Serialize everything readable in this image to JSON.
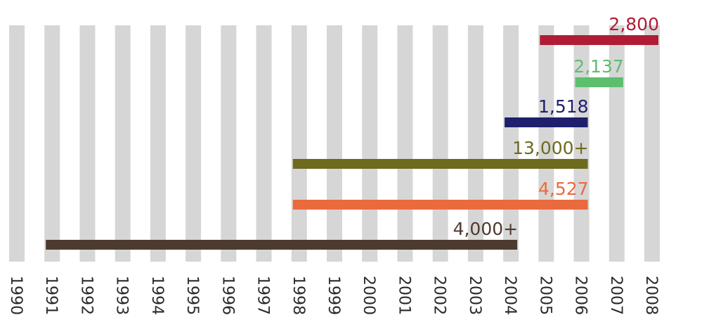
{
  "chart_data": {
    "type": "bar",
    "orientation": "horizontal-timeline",
    "title": "",
    "xlabel": "",
    "ylabel": "",
    "x_categories": [
      "1990",
      "1991",
      "1992",
      "1993",
      "1994",
      "1995",
      "1996",
      "1997",
      "1998",
      "1999",
      "2000",
      "2001",
      "2002",
      "2003",
      "2004",
      "2005",
      "2006",
      "2007",
      "2008"
    ],
    "grid": true,
    "grid_color": "#d6d6d6",
    "series": [
      {
        "label": "2,800",
        "start": "2005",
        "end": "2008",
        "color": "#b01c36"
      },
      {
        "label": "2,137",
        "start": "2006",
        "end": "2007",
        "color": "#5bbf6e"
      },
      {
        "label": "1,518",
        "start": "2004",
        "end": "2006",
        "color": "#1f1f6e"
      },
      {
        "label": "13,000+",
        "start": "1998",
        "end": "2006",
        "color": "#6e6a1e"
      },
      {
        "label": "4,527",
        "start": "1998",
        "end": "2006",
        "color": "#ea6a3d"
      },
      {
        "label": "4,000+",
        "start": "1991",
        "end": "2004",
        "color": "#4e3b30"
      }
    ]
  }
}
